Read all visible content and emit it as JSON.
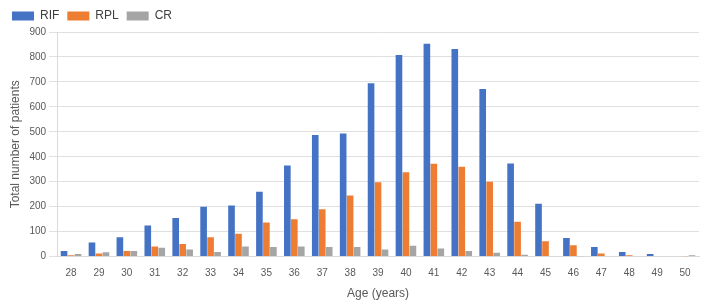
{
  "chart_data": {
    "type": "bar",
    "x_label": "Age (years)",
    "y_label": "Total number of patients",
    "categories": [
      "28",
      "29",
      "30",
      "31",
      "32",
      "33",
      "34",
      "35",
      "36",
      "37",
      "38",
      "39",
      "40",
      "41",
      "42",
      "43",
      "44",
      "45",
      "46",
      "47",
      "48",
      "49",
      "50"
    ],
    "series": [
      {
        "name": "RIF",
        "color": "#4472c4",
        "values": [
          22,
          57,
          78,
          125,
          155,
          200,
          205,
          260,
          365,
          487,
          493,
          695,
          808,
          853,
          832,
          672,
          373,
          212,
          75,
          38,
          18,
          10,
          2
        ]
      },
      {
        "name": "RPL",
        "color": "#ed7d31",
        "values": [
          5,
          12,
          22,
          40,
          50,
          78,
          92,
          137,
          150,
          190,
          245,
          298,
          338,
          372,
          360,
          300,
          140,
          62,
          45,
          12,
          5,
          2,
          1
        ]
      },
      {
        "name": "CR",
        "color": "#a5a5a5",
        "values": [
          10,
          17,
          22,
          35,
          28,
          18,
          40,
          38,
          40,
          38,
          38,
          28,
          43,
          32,
          22,
          15,
          7,
          2,
          1,
          0,
          0,
          0,
          5
        ]
      }
    ],
    "ylim": [
      0,
      900
    ],
    "yticks": [
      0,
      100,
      200,
      300,
      400,
      500,
      600,
      700,
      800,
      900
    ],
    "grid": true,
    "legend": "upper left"
  }
}
